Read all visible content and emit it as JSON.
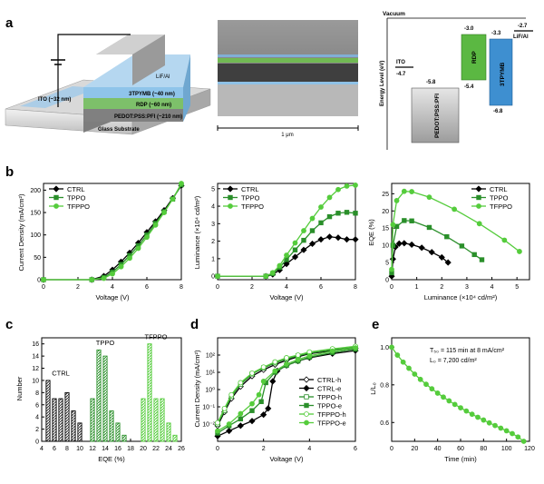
{
  "colors": {
    "ctrl": "#000000",
    "tppo": "#2a8f2a",
    "tfppo": "#55cc3c"
  },
  "panel_labels": [
    "a",
    "b",
    "c",
    "d",
    "e"
  ],
  "panel_a": {
    "device_layers": [
      "LiF/Al",
      "3TPYMB (~40 nm)",
      "RDP (~60 nm)",
      "PEDOT:PSS:PFI (~210 nm)",
      "ITO (~32 nm)",
      "Glass Substrate"
    ],
    "sem_scale": "1 μm",
    "energy": {
      "vacuum": "Vacuum",
      "ylabel": "Energy Level (eV)",
      "ito": {
        "name": "ITO",
        "level": "-4.7"
      },
      "pedot": {
        "name": "PEDOT:PSS:PFI",
        "level": "-5.8"
      },
      "rdp": {
        "name": "RDP",
        "top": "-3.0",
        "bottom": "-5.4"
      },
      "tpymb": {
        "name": "3TPYMB",
        "top": "-3.3",
        "bottom": "-6.8"
      },
      "lifal": {
        "name": "LiF/Al",
        "level": "-2.7"
      }
    }
  },
  "chart_data": [
    {
      "type": "line",
      "panel": "b-left",
      "xlabel": "Voltage (V)",
      "ylabel": "Current Density (mA/cm²)",
      "xlim": [
        0,
        8
      ],
      "ylim": [
        0,
        215
      ],
      "xticks": [
        "0",
        "2",
        "4",
        "6",
        "8"
      ],
      "yticks": [
        "0",
        "50",
        "100",
        "150",
        "200"
      ],
      "legend": "top-left",
      "x": [
        0,
        2.8,
        3.5,
        4.0,
        4.5,
        5.0,
        5.5,
        6.0,
        6.5,
        7.0,
        7.5,
        8.0
      ],
      "series": [
        {
          "name": "CTRL",
          "values": [
            0,
            0,
            8,
            22,
            40,
            60,
            82,
            106,
            130,
            155,
            182,
            210
          ]
        },
        {
          "name": "TPPO",
          "values": [
            0,
            0,
            5,
            17,
            34,
            54,
            76,
            100,
            126,
            152,
            180,
            212
          ]
        },
        {
          "name": "TFPPO",
          "values": [
            0,
            0,
            3,
            13,
            29,
            48,
            70,
            95,
            122,
            150,
            180,
            215
          ]
        }
      ]
    },
    {
      "type": "line",
      "panel": "b-middle",
      "xlabel": "Voltage (V)",
      "ylabel": "Luminance (×10⁴ cd/m²)",
      "xlim": [
        0,
        8
      ],
      "ylim": [
        -0.2,
        5.3
      ],
      "xticks": [
        "0",
        "2",
        "4",
        "6",
        "8"
      ],
      "yticks": [
        "0",
        "1",
        "2",
        "3",
        "4",
        "5"
      ],
      "legend": "top-left",
      "x": [
        0,
        2.8,
        3.2,
        3.6,
        4.0,
        4.5,
        5.0,
        5.5,
        6.0,
        6.5,
        7.0,
        7.5,
        8.0
      ],
      "series": [
        {
          "name": "CTRL",
          "values": [
            0,
            0,
            0.1,
            0.35,
            0.7,
            1.1,
            1.5,
            1.85,
            2.1,
            2.25,
            2.2,
            2.1,
            2.1
          ]
        },
        {
          "name": "TPPO",
          "values": [
            0,
            0,
            0.15,
            0.5,
            0.95,
            1.5,
            2.05,
            2.6,
            3.05,
            3.4,
            3.6,
            3.65,
            3.6
          ]
        },
        {
          "name": "TFPPO",
          "values": [
            0,
            0,
            0.2,
            0.6,
            1.2,
            1.9,
            2.6,
            3.3,
            3.95,
            4.5,
            4.95,
            5.15,
            5.2
          ]
        }
      ]
    },
    {
      "type": "line",
      "panel": "b-right",
      "xlabel": "Luminance (×10⁴ cd/m²)",
      "ylabel": "EQE (%)",
      "xlim": [
        0,
        5.5
      ],
      "ylim": [
        0,
        28
      ],
      "xticks": [
        "0",
        "1",
        "2",
        "3",
        "4",
        "5"
      ],
      "yticks": [
        "0",
        "5",
        "10",
        "15",
        "20",
        "25"
      ],
      "legend": "top-right",
      "series": [
        {
          "name": "CTRL",
          "x": [
            0,
            0.05,
            0.15,
            0.3,
            0.5,
            0.8,
            1.2,
            1.6,
            2.0,
            2.25
          ],
          "values": [
            1,
            6,
            9.5,
            10.5,
            10.6,
            10.2,
            9.3,
            8,
            6.5,
            5
          ]
        },
        {
          "name": "TPPO",
          "x": [
            0,
            0.05,
            0.2,
            0.5,
            0.8,
            1.5,
            2.2,
            2.8,
            3.3,
            3.6
          ],
          "values": [
            2,
            10,
            15.5,
            17.2,
            17.1,
            15.2,
            12.5,
            9.8,
            7.3,
            5.8
          ]
        },
        {
          "name": "TFPPO",
          "x": [
            0,
            0.05,
            0.2,
            0.5,
            0.8,
            1.5,
            2.5,
            3.5,
            4.5,
            5.1
          ],
          "values": [
            3,
            16,
            23,
            25.7,
            25.6,
            24,
            20.5,
            16.3,
            11.5,
            8.2
          ]
        }
      ]
    },
    {
      "type": "bar",
      "panel": "c",
      "xlabel": "EQE (%)",
      "ylabel": "Number",
      "xlim": [
        4,
        26
      ],
      "ylim": [
        0,
        17
      ],
      "xticks": [
        "4",
        "6",
        "8",
        "10",
        "12",
        "14",
        "16",
        "18",
        "20",
        "22",
        "24",
        "26"
      ],
      "yticks": [
        "0",
        "2",
        "4",
        "6",
        "8",
        "10",
        "12",
        "14",
        "16"
      ],
      "group_labels": [
        "CTRL",
        "TPPO",
        "TFPPO"
      ],
      "series": [
        {
          "name": "CTRL",
          "x": [
            5,
            6,
            7,
            8,
            9,
            10
          ],
          "values": [
            10,
            7,
            7,
            8,
            5,
            3
          ]
        },
        {
          "name": "TPPO",
          "x": [
            12,
            13,
            14,
            15,
            16,
            17
          ],
          "values": [
            7,
            15,
            14,
            5,
            3,
            1
          ]
        },
        {
          "name": "TFPPO",
          "x": [
            20,
            21,
            22,
            23,
            24,
            25
          ],
          "values": [
            7,
            16,
            7,
            7,
            3,
            1
          ]
        }
      ]
    },
    {
      "type": "line",
      "panel": "d",
      "xlabel": "Voltage (V)",
      "ylabel": "Current Density (mA/cm²)",
      "xlim": [
        0,
        6
      ],
      "yscale": "log",
      "ylim": [
        0.001,
        1000
      ],
      "xticks": [
        "0",
        "2",
        "4",
        "6"
      ],
      "yticks": [
        "10⁻²",
        "10⁻¹",
        "10⁰",
        "10¹",
        "10²"
      ],
      "legend": "right",
      "series": [
        {
          "name": "CTRL-h",
          "x": [
            0,
            0.3,
            0.6,
            1.0,
            1.5,
            2.0,
            2.5,
            3.0,
            3.5,
            4.0,
            5.0,
            6.0
          ],
          "values": [
            0.008,
            0.05,
            0.3,
            1.5,
            6,
            14,
            28,
            50,
            80,
            120,
            180,
            250
          ]
        },
        {
          "name": "CTRL-e",
          "x": [
            0,
            0.5,
            1.0,
            1.5,
            2.0,
            2.2,
            2.4,
            2.6,
            3.0,
            3.5,
            4.0,
            5.0,
            6.0
          ],
          "values": [
            0.002,
            0.004,
            0.008,
            0.015,
            0.035,
            0.08,
            3,
            12,
            25,
            45,
            70,
            120,
            180
          ]
        },
        {
          "name": "TPPO-h",
          "x": [
            0,
            0.3,
            0.6,
            1.0,
            1.5,
            2.0,
            2.5,
            3.0,
            3.5,
            4.0,
            5.0,
            6.0
          ],
          "values": [
            0.01,
            0.06,
            0.4,
            2,
            8,
            18,
            35,
            60,
            90,
            130,
            200,
            280
          ]
        },
        {
          "name": "TPPO-e",
          "x": [
            0,
            0.5,
            1.0,
            1.5,
            1.9,
            2.1,
            2.5,
            3.0,
            3.5,
            4.0,
            5.0,
            6.0
          ],
          "values": [
            0.003,
            0.008,
            0.02,
            0.06,
            0.2,
            2.5,
            10,
            25,
            45,
            75,
            140,
            220
          ]
        },
        {
          "name": "TFPPO-h",
          "x": [
            0,
            0.3,
            0.6,
            1.0,
            1.5,
            2.0,
            2.5,
            3.0,
            3.5,
            4.0,
            5.0,
            6.0
          ],
          "values": [
            0.012,
            0.08,
            0.5,
            2.5,
            9,
            20,
            40,
            70,
            100,
            150,
            230,
            320
          ]
        },
        {
          "name": "TFPPO-e",
          "x": [
            0,
            0.5,
            1.0,
            1.5,
            1.8,
            2.0,
            2.5,
            3.0,
            3.5,
            4.0,
            5.0,
            6.0
          ],
          "values": [
            0.004,
            0.01,
            0.04,
            0.15,
            0.5,
            3,
            12,
            30,
            55,
            90,
            170,
            260
          ]
        }
      ]
    },
    {
      "type": "line",
      "panel": "e",
      "xlabel": "Time (min)",
      "ylabel": "L/L₀",
      "xlim": [
        0,
        120
      ],
      "ylim": [
        0.5,
        1.05
      ],
      "xticks": [
        "0",
        "20",
        "40",
        "60",
        "80",
        "100",
        "120"
      ],
      "yticks": [
        "0.6",
        "0.8",
        "1.0"
      ],
      "annotations": [
        "T₅₀ = 115 min at 8 mA/cm²",
        "L₀ = 7,200 cd/m²"
      ],
      "series": [
        {
          "name": "TFPPO",
          "x": [
            0,
            5,
            10,
            15,
            20,
            25,
            30,
            35,
            40,
            45,
            50,
            55,
            60,
            65,
            70,
            75,
            80,
            85,
            90,
            95,
            100,
            105,
            110,
            115
          ],
          "values": [
            1.0,
            0.958,
            0.921,
            0.888,
            0.857,
            0.829,
            0.803,
            0.779,
            0.756,
            0.735,
            0.715,
            0.696,
            0.678,
            0.661,
            0.644,
            0.628,
            0.613,
            0.598,
            0.584,
            0.57,
            0.556,
            0.541,
            0.523,
            0.5
          ]
        }
      ]
    }
  ]
}
